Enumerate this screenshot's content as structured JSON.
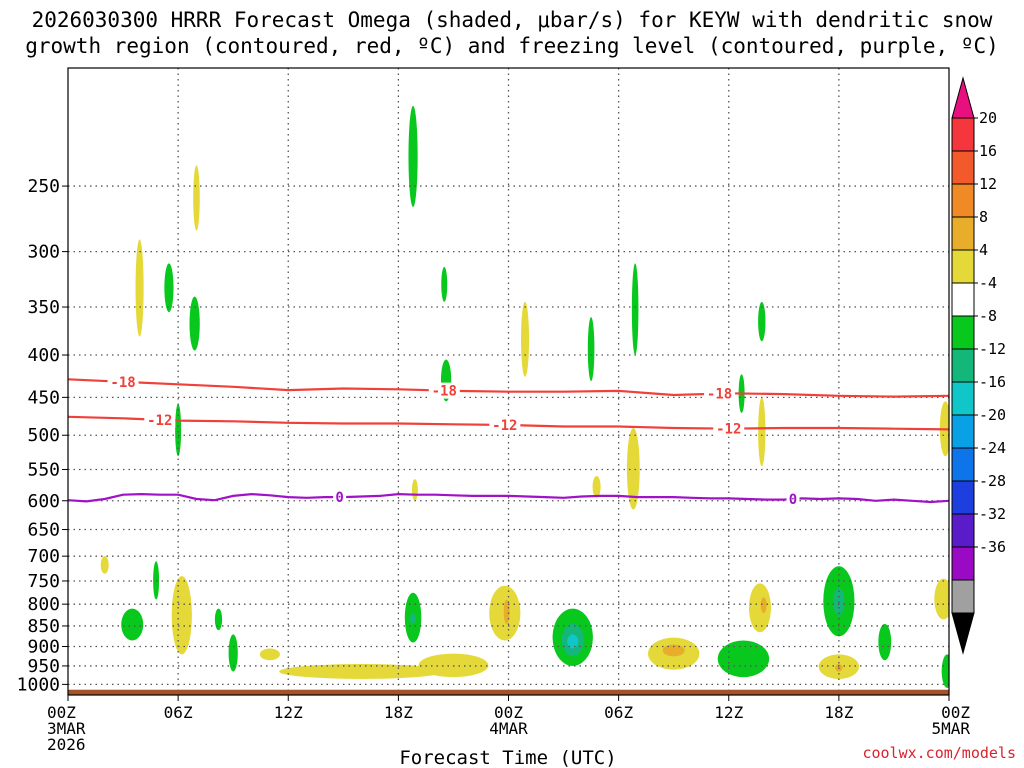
{
  "title": {
    "line1": "2026030300 HRRR Forecast Omega (shaded, μbar/s) for KEYW with dendritic snow",
    "line2": "growth region (contoured, red, ºC) and freezing level (contoured, purple, ºC)"
  },
  "credit": "coolwx.com/models",
  "chart_data": {
    "type": "heatmap",
    "xlabel": "Forecast Time (UTC)",
    "ylabel": "",
    "xlim_hours": [
      0,
      48
    ],
    "ylim_hpa": [
      1030,
      180
    ],
    "y_scale": "log-pressure",
    "grid": true,
    "x_ticks": [
      {
        "h": 0,
        "lines": [
          "00Z",
          "3MAR",
          "2026"
        ]
      },
      {
        "h": 6,
        "lines": [
          "06Z"
        ]
      },
      {
        "h": 12,
        "lines": [
          "12Z"
        ]
      },
      {
        "h": 18,
        "lines": [
          "18Z"
        ]
      },
      {
        "h": 24,
        "lines": [
          "00Z",
          "4MAR"
        ]
      },
      {
        "h": 30,
        "lines": [
          "06Z"
        ]
      },
      {
        "h": 36,
        "lines": [
          "12Z"
        ]
      },
      {
        "h": 42,
        "lines": [
          "18Z"
        ]
      },
      {
        "h": 48,
        "lines": [
          "00Z",
          "5MAR"
        ]
      }
    ],
    "y_ticks": [
      250,
      300,
      350,
      400,
      450,
      500,
      550,
      600,
      650,
      700,
      750,
      800,
      850,
      900,
      950,
      1000
    ],
    "colorbar": {
      "labels": [
        "20",
        "16",
        "12",
        "8",
        "4",
        "-4",
        "-8",
        "-12",
        "-16",
        "-20",
        "-24",
        "-28",
        "-32",
        "-36"
      ],
      "colors": [
        "#e8107e",
        "#f5363c",
        "#f25a2c",
        "#ef8a24",
        "#e9ad2c",
        "#e5d93a",
        "#ffffff",
        "#08c81e",
        "#13b77a",
        "#10c6c8",
        "#0aa0e6",
        "#0e74e9",
        "#1d3fe0",
        "#5a1bc9",
        "#9a09c4",
        "#a0a0a0",
        "#000000"
      ]
    },
    "terrain": {
      "top_hpa": 1015,
      "color": "#a5522a"
    },
    "contours": [
      {
        "label": "-18",
        "color": "#f0403a",
        "points": [
          [
            0,
            428
          ],
          [
            3,
            431
          ],
          [
            6,
            434
          ],
          [
            9,
            437
          ],
          [
            12,
            441
          ],
          [
            15,
            439
          ],
          [
            18,
            440
          ],
          [
            21,
            442
          ],
          [
            24,
            443
          ],
          [
            27,
            443
          ],
          [
            30,
            442
          ],
          [
            33,
            447
          ],
          [
            36,
            445
          ],
          [
            39,
            446
          ],
          [
            42,
            448
          ],
          [
            45,
            449
          ],
          [
            48,
            448
          ]
        ],
        "label_at": [
          3,
          20.5,
          35.5
        ]
      },
      {
        "label": "-12",
        "color": "#f0403a",
        "points": [
          [
            0,
            475
          ],
          [
            3,
            477
          ],
          [
            6,
            480
          ],
          [
            9,
            481
          ],
          [
            12,
            483
          ],
          [
            15,
            484
          ],
          [
            18,
            484
          ],
          [
            21,
            485
          ],
          [
            24,
            486
          ],
          [
            27,
            488
          ],
          [
            30,
            488
          ],
          [
            33,
            490
          ],
          [
            36,
            491
          ],
          [
            39,
            490
          ],
          [
            42,
            490
          ],
          [
            45,
            491
          ],
          [
            48,
            492
          ]
        ],
        "label_at": [
          5,
          23.8,
          36
        ]
      },
      {
        "label": "0",
        "color": "#a012c8",
        "points": [
          [
            0,
            599
          ],
          [
            1,
            601
          ],
          [
            2,
            597
          ],
          [
            3,
            590
          ],
          [
            4,
            589
          ],
          [
            5,
            590
          ],
          [
            6,
            590
          ],
          [
            7,
            597
          ],
          [
            8,
            599
          ],
          [
            9,
            592
          ],
          [
            10,
            589
          ],
          [
            11,
            591
          ],
          [
            12,
            594
          ],
          [
            13,
            595
          ],
          [
            14,
            594
          ],
          [
            15,
            594
          ],
          [
            16,
            593
          ],
          [
            17,
            592
          ],
          [
            18,
            589
          ],
          [
            19,
            590
          ],
          [
            20,
            590
          ],
          [
            21,
            591
          ],
          [
            22,
            592
          ],
          [
            23,
            592
          ],
          [
            24,
            592
          ],
          [
            25,
            593
          ],
          [
            26,
            594
          ],
          [
            27,
            595
          ],
          [
            28,
            593
          ],
          [
            29,
            592
          ],
          [
            30,
            592
          ],
          [
            31,
            594
          ],
          [
            32,
            594
          ],
          [
            33,
            594
          ],
          [
            34,
            595
          ],
          [
            35,
            596
          ],
          [
            36,
            596
          ],
          [
            37,
            597
          ],
          [
            38,
            598
          ],
          [
            39,
            598
          ],
          [
            40,
            596
          ],
          [
            41,
            597
          ],
          [
            42,
            596
          ],
          [
            43,
            597
          ],
          [
            44,
            600
          ],
          [
            45,
            598
          ],
          [
            46,
            600
          ],
          [
            47,
            602
          ],
          [
            48,
            600
          ]
        ],
        "label_at": [
          14.8,
          39.5
        ]
      }
    ],
    "blobs": [
      {
        "h": 18.8,
        "p": 200,
        "w": 0.25,
        "p1": 265,
        "level": 7
      },
      {
        "h": 7.0,
        "p": 236,
        "w": 0.18,
        "p1": 283,
        "level": 5
      },
      {
        "h": 3.9,
        "p": 290,
        "w": 0.22,
        "p1": 380,
        "level": 5
      },
      {
        "h": 5.5,
        "p": 310,
        "w": 0.25,
        "p1": 355,
        "level": 7
      },
      {
        "h": 6.9,
        "p": 340,
        "w": 0.28,
        "p1": 395,
        "level": 7
      },
      {
        "h": 20.5,
        "p": 313,
        "w": 0.12,
        "p1": 345,
        "level": 7
      },
      {
        "h": 24.9,
        "p": 345,
        "w": 0.22,
        "p1": 425,
        "level": 5
      },
      {
        "h": 28.5,
        "p": 360,
        "w": 0.18,
        "p1": 430,
        "level": 7
      },
      {
        "h": 30.9,
        "p": 310,
        "w": 0.18,
        "p1": 400,
        "level": 7
      },
      {
        "h": 37.8,
        "p": 345,
        "w": 0.2,
        "p1": 385,
        "level": 7
      },
      {
        "h": 20.6,
        "p": 405,
        "w": 0.28,
        "p1": 455,
        "level": 7
      },
      {
        "h": 36.7,
        "p": 422,
        "w": 0.12,
        "p1": 470,
        "level": 7
      },
      {
        "h": 37.8,
        "p": 450,
        "w": 0.2,
        "p1": 545,
        "level": 5
      },
      {
        "h": 47.8,
        "p": 455,
        "w": 0.3,
        "p1": 530,
        "level": 5
      },
      {
        "h": 6.0,
        "p": 458,
        "w": 0.12,
        "p1": 530,
        "level": 7
      },
      {
        "h": 30.8,
        "p": 490,
        "w": 0.35,
        "p1": 615,
        "level": 5
      },
      {
        "h": 18.9,
        "p": 565,
        "w": 0.12,
        "p1": 600,
        "level": 5
      },
      {
        "h": 28.8,
        "p": 560,
        "w": 0.22,
        "p1": 595,
        "level": 5
      },
      {
        "h": 2.0,
        "p": 700,
        "w": 0.22,
        "p1": 735,
        "level": 5
      },
      {
        "h": 4.8,
        "p": 710,
        "w": 0.15,
        "p1": 790,
        "level": 7
      },
      {
        "h": 6.2,
        "p": 740,
        "w": 0.55,
        "p1": 920,
        "level": 5
      },
      {
        "h": 3.5,
        "p": 810,
        "w": 0.6,
        "p1": 885,
        "level": 7
      },
      {
        "h": 8.2,
        "p": 810,
        "w": 0.2,
        "p1": 860,
        "level": 7
      },
      {
        "h": 9.0,
        "p": 870,
        "w": 0.25,
        "p1": 965,
        "level": 7
      },
      {
        "h": 11.0,
        "p": 905,
        "w": 0.55,
        "p1": 935,
        "level": 5
      },
      {
        "h": 18.8,
        "p": 775,
        "w": 0.45,
        "p1": 890,
        "level": 7
      },
      {
        "h": 18.8,
        "p": 820,
        "w": 0.12,
        "p1": 845,
        "level": 8
      },
      {
        "h": 16.0,
        "p": 945,
        "w": 4.5,
        "p1": 985,
        "level": 5
      },
      {
        "h": 21.0,
        "p": 918,
        "w": 1.9,
        "p1": 980,
        "level": 5
      },
      {
        "h": 23.8,
        "p": 760,
        "w": 0.85,
        "p1": 885,
        "level": 5
      },
      {
        "h": 23.9,
        "p": 790,
        "w": 0.15,
        "p1": 845,
        "level": 4
      },
      {
        "h": 27.5,
        "p": 810,
        "w": 1.1,
        "p1": 950,
        "level": 7
      },
      {
        "h": 27.5,
        "p": 845,
        "w": 0.6,
        "p1": 925,
        "level": 8
      },
      {
        "h": 27.5,
        "p": 870,
        "w": 0.3,
        "p1": 905,
        "level": 9
      },
      {
        "h": 33.0,
        "p": 878,
        "w": 1.4,
        "p1": 960,
        "level": 5
      },
      {
        "h": 33.0,
        "p": 895,
        "w": 0.6,
        "p1": 925,
        "level": 4
      },
      {
        "h": 36.8,
        "p": 885,
        "w": 1.4,
        "p1": 980,
        "level": 7
      },
      {
        "h": 37.7,
        "p": 755,
        "w": 0.6,
        "p1": 865,
        "level": 5
      },
      {
        "h": 37.9,
        "p": 785,
        "w": 0.15,
        "p1": 820,
        "level": 4
      },
      {
        "h": 42.0,
        "p": 720,
        "w": 0.85,
        "p1": 875,
        "level": 7
      },
      {
        "h": 42.0,
        "p": 765,
        "w": 0.3,
        "p1": 825,
        "level": 8
      },
      {
        "h": 44.5,
        "p": 845,
        "w": 0.35,
        "p1": 935,
        "level": 7
      },
      {
        "h": 42.0,
        "p": 920,
        "w": 1.1,
        "p1": 985,
        "level": 5
      },
      {
        "h": 42.0,
        "p": 945,
        "w": 0.2,
        "p1": 965,
        "level": 4
      },
      {
        "h": 47.7,
        "p": 745,
        "w": 0.5,
        "p1": 835,
        "level": 5
      },
      {
        "h": 47.9,
        "p": 920,
        "w": 0.3,
        "p1": 1010,
        "level": 7
      }
    ]
  }
}
